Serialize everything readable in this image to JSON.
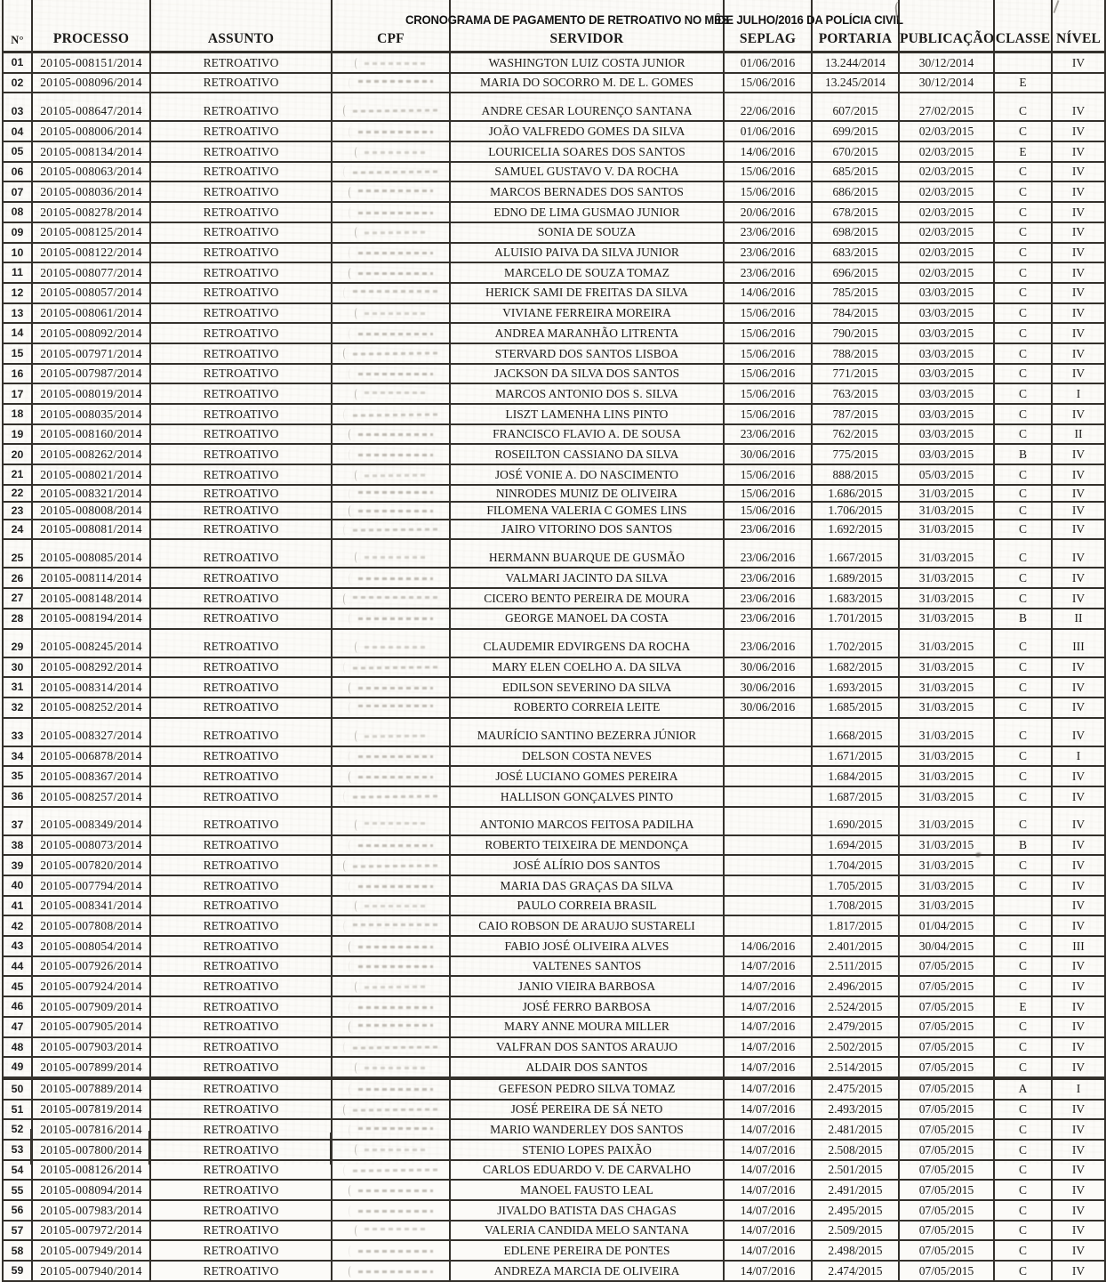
{
  "doc": {
    "title": {
      "part1": "CRONOGRAMA DE PAGAMENTO DE RETROATIVO NO MÊS",
      "part2": " DE JULHO",
      "part3": "/2016 DA POLÍCIA CIVIL"
    },
    "columns": [
      "N°",
      "PROCESSO",
      "ASSUNTO",
      "CPF",
      "SERVIDOR",
      "SEPLAG",
      "PORTARIA",
      "PUBLICAÇÃO",
      "CLASSE",
      "NÍVEL"
    ],
    "rows": [
      {
        "n": "01",
        "processo": "20105-008151/2014",
        "assunto": "RETROATIVO",
        "cpf": "",
        "servidor": "WASHINGTON LUIZ COSTA JUNIOR",
        "seplag": "01/06/2016",
        "portaria": "13.244/2014",
        "publicacao": "30/12/2014",
        "classe": "",
        "nivel": "IV"
      },
      {
        "n": "02",
        "processo": "20105-008096/2014",
        "assunto": "RETROATIVO",
        "cpf": "",
        "servidor": "MARIA DO SOCORRO M. DE L. GOMES",
        "seplag": "15/06/2016",
        "portaria": "13.245/2014",
        "publicacao": "30/12/2014",
        "classe": "E",
        "nivel": ""
      },
      {
        "n": "03",
        "processo": "20105-008647/2014",
        "assunto": "RETROATIVO",
        "cpf": "",
        "servidor": "ANDRE CESAR LOURENÇO SANTANA",
        "seplag": "22/06/2016",
        "portaria": "607/2015",
        "publicacao": "27/02/2015",
        "classe": "C",
        "nivel": "IV"
      },
      {
        "n": "04",
        "processo": "20105-008006/2014",
        "assunto": "RETROATIVO",
        "cpf": "",
        "servidor": "JOÃO VALFREDO GOMES DA SILVA",
        "seplag": "01/06/2016",
        "portaria": "699/2015",
        "publicacao": "02/03/2015",
        "classe": "C",
        "nivel": "IV"
      },
      {
        "n": "05",
        "processo": "20105-008134/2014",
        "assunto": "RETROATIVO",
        "cpf": "",
        "servidor": "LOURICELIA SOARES DOS SANTOS",
        "seplag": "14/06/2016",
        "portaria": "670/2015",
        "publicacao": "02/03/2015",
        "classe": "E",
        "nivel": "IV"
      },
      {
        "n": "06",
        "processo": "20105-008063/2014",
        "assunto": "RETROATIVO",
        "cpf": "",
        "servidor": "SAMUEL GUSTAVO V. DA ROCHA",
        "seplag": "15/06/2016",
        "portaria": "685/2015",
        "publicacao": "02/03/2015",
        "classe": "C",
        "nivel": "IV"
      },
      {
        "n": "07",
        "processo": "20105-008036/2014",
        "assunto": "RETROATIVO",
        "cpf": "",
        "servidor": "MARCOS BERNADES DOS SANTOS",
        "seplag": "15/06/2016",
        "portaria": "686/2015",
        "publicacao": "02/03/2015",
        "classe": "C",
        "nivel": "IV"
      },
      {
        "n": "08",
        "processo": "20105-008278/2014",
        "assunto": "RETROATIVO",
        "cpf": "",
        "servidor": "EDNO DE LIMA GUSMAO JUNIOR",
        "seplag": "20/06/2016",
        "portaria": "678/2015",
        "publicacao": "02/03/2015",
        "classe": "C",
        "nivel": "IV"
      },
      {
        "n": "09",
        "processo": "20105-008125/2014",
        "assunto": "RETROATIVO",
        "cpf": "",
        "servidor": "SONIA DE SOUZA",
        "seplag": "23/06/2016",
        "portaria": "698/2015",
        "publicacao": "02/03/2015",
        "classe": "C",
        "nivel": "IV"
      },
      {
        "n": "10",
        "processo": "20105-008122/2014",
        "assunto": "RETROATIVO",
        "cpf": "",
        "servidor": "ALUISIO PAIVA DA SILVA JUNIOR",
        "seplag": "23/06/2016",
        "portaria": "683/2015",
        "publicacao": "02/03/2015",
        "classe": "C",
        "nivel": "IV"
      },
      {
        "n": "11",
        "processo": "20105-008077/2014",
        "assunto": "RETROATIVO",
        "cpf": "",
        "servidor": "MARCELO DE SOUZA TOMAZ",
        "seplag": "23/06/2016",
        "portaria": "696/2015",
        "publicacao": "02/03/2015",
        "classe": "C",
        "nivel": "IV"
      },
      {
        "n": "12",
        "processo": "20105-008057/2014",
        "assunto": "RETROATIVO",
        "cpf": "",
        "servidor": "HERICK SAMI DE FREITAS DA SILVA",
        "seplag": "14/06/2016",
        "portaria": "785/2015",
        "publicacao": "03/03/2015",
        "classe": "C",
        "nivel": "IV"
      },
      {
        "n": "13",
        "processo": "20105-008061/2014",
        "assunto": "RETROATIVO",
        "cpf": "",
        "servidor": "VIVIANE FERREIRA MOREIRA",
        "seplag": "15/06/2016",
        "portaria": "784/2015",
        "publicacao": "03/03/2015",
        "classe": "C",
        "nivel": "IV"
      },
      {
        "n": "14",
        "processo": "20105-008092/2014",
        "assunto": "RETROATIVO",
        "cpf": "",
        "servidor": "ANDREA MARANHÃO LITRENTA",
        "seplag": "15/06/2016",
        "portaria": "790/2015",
        "publicacao": "03/03/2015",
        "classe": "C",
        "nivel": "IV"
      },
      {
        "n": "15",
        "processo": "20105-007971/2014",
        "assunto": "RETROATIVO",
        "cpf": "",
        "servidor": "STERVARD DOS SANTOS LISBOA",
        "seplag": "15/06/2016",
        "portaria": "788/2015",
        "publicacao": "03/03/2015",
        "classe": "C",
        "nivel": "IV"
      },
      {
        "n": "16",
        "processo": "20105-007987/2014",
        "assunto": "RETROATIVO",
        "cpf": "",
        "servidor": "JACKSON DA SILVA DOS SANTOS",
        "seplag": "15/06/2016",
        "portaria": "771/2015",
        "publicacao": "03/03/2015",
        "classe": "C",
        "nivel": "IV"
      },
      {
        "n": "17",
        "processo": "20105-008019/2014",
        "assunto": "RETROATIVO",
        "cpf": "",
        "servidor": "MARCOS ANTONIO DOS S. SILVA",
        "seplag": "15/06/2016",
        "portaria": "763/2015",
        "publicacao": "03/03/2015",
        "classe": "C",
        "nivel": "I"
      },
      {
        "n": "18",
        "processo": "20105-008035/2014",
        "assunto": "RETROATIVO",
        "cpf": "",
        "servidor": "LISZT LAMENHA LINS PINTO",
        "seplag": "15/06/2016",
        "portaria": "787/2015",
        "publicacao": "03/03/2015",
        "classe": "C",
        "nivel": "IV"
      },
      {
        "n": "19",
        "processo": "20105-008160/2014",
        "assunto": "RETROATIVO",
        "cpf": "",
        "servidor": "FRANCISCO FLAVIO A. DE SOUSA",
        "seplag": "23/06/2016",
        "portaria": "762/2015",
        "publicacao": "03/03/2015",
        "classe": "C",
        "nivel": "II"
      },
      {
        "n": "20",
        "processo": "20105-008262/2014",
        "assunto": "RETROATIVO",
        "cpf": "",
        "servidor": "ROSEILTON CASSIANO DA SILVA",
        "seplag": "30/06/2016",
        "portaria": "775/2015",
        "publicacao": "03/03/2015",
        "classe": "B",
        "nivel": "IV"
      },
      {
        "n": "21",
        "processo": "20105-008021/2014",
        "assunto": "RETROATIVO",
        "cpf": "",
        "servidor": "JOSÉ VONIE A. DO NASCIMENTO",
        "seplag": "15/06/2016",
        "portaria": "888/2015",
        "publicacao": "05/03/2015",
        "classe": "C",
        "nivel": "IV"
      },
      {
        "n": "22",
        "processo": "20105-008321/2014",
        "assunto": "RETROATIVO",
        "cpf": "",
        "servidor": "NINRODES MUNIZ DE OLIVEIRA",
        "seplag": "15/06/2016",
        "portaria": "1.686/2015",
        "publicacao": "31/03/2015",
        "classe": "C",
        "nivel": "IV"
      },
      {
        "n": "23",
        "processo": "20105-008008/2014",
        "assunto": "RETROATIVO",
        "cpf": "",
        "servidor": "FILOMENA VALERIA C GOMES LINS",
        "seplag": "15/06/2016",
        "portaria": "1.706/2015",
        "publicacao": "31/03/2015",
        "classe": "C",
        "nivel": "IV"
      },
      {
        "n": "24",
        "processo": "20105-008081/2014",
        "assunto": "RETROATIVO",
        "cpf": "",
        "servidor": "JAIRO VITORINO DOS SANTOS",
        "seplag": "23/06/2016",
        "portaria": "1.692/2015",
        "publicacao": "31/03/2015",
        "classe": "C",
        "nivel": "IV"
      },
      {
        "n": "25",
        "processo": "20105-008085/2014",
        "assunto": "RETROATIVO",
        "cpf": "",
        "servidor": "HERMANN BUARQUE DE GUSMÃO",
        "seplag": "23/06/2016",
        "portaria": "1.667/2015",
        "publicacao": "31/03/2015",
        "classe": "C",
        "nivel": "IV"
      },
      {
        "n": "26",
        "processo": "20105-008114/2014",
        "assunto": "RETROATIVO",
        "cpf": "",
        "servidor": "VALMARI JACINTO DA SILVA",
        "seplag": "23/06/2016",
        "portaria": "1.689/2015",
        "publicacao": "31/03/2015",
        "classe": "C",
        "nivel": "IV"
      },
      {
        "n": "27",
        "processo": "20105-008148/2014",
        "assunto": "RETROATIVO",
        "cpf": "",
        "servidor": "CICERO BENTO PEREIRA DE MOURA",
        "seplag": "23/06/2016",
        "portaria": "1.683/2015",
        "publicacao": "31/03/2015",
        "classe": "C",
        "nivel": "IV"
      },
      {
        "n": "28",
        "processo": "20105-008194/2014",
        "assunto": "RETROATIVO",
        "cpf": "",
        "servidor": "GEORGE MANOEL DA COSTA",
        "seplag": "23/06/2016",
        "portaria": "1.701/2015",
        "publicacao": "31/03/2015",
        "classe": "B",
        "nivel": "II"
      },
      {
        "n": "29",
        "processo": "20105-008245/2014",
        "assunto": "RETROATIVO",
        "cpf": "",
        "servidor": "CLAUDEMIR EDVIRGENS DA ROCHA",
        "seplag": "23/06/2016",
        "portaria": "1.702/2015",
        "publicacao": "31/03/2015",
        "classe": "C",
        "nivel": "III"
      },
      {
        "n": "30",
        "processo": "20105-008292/2014",
        "assunto": "RETROATIVO",
        "cpf": "",
        "servidor": "MARY ELEN COELHO A. DA SILVA",
        "seplag": "30/06/2016",
        "portaria": "1.682/2015",
        "publicacao": "31/03/2015",
        "classe": "C",
        "nivel": "IV"
      },
      {
        "n": "31",
        "processo": "20105-008314/2014",
        "assunto": "RETROATIVO",
        "cpf": "",
        "servidor": "EDILSON SEVERINO DA SILVA",
        "seplag": "30/06/2016",
        "portaria": "1.693/2015",
        "publicacao": "31/03/2015",
        "classe": "C",
        "nivel": "IV"
      },
      {
        "n": "32",
        "processo": "20105-008252/2014",
        "assunto": "RETROATIVO",
        "cpf": "",
        "servidor": "ROBERTO CORREIA LEITE",
        "seplag": "30/06/2016",
        "portaria": "1.685/2015",
        "publicacao": "31/03/2015",
        "classe": "C",
        "nivel": "IV"
      },
      {
        "n": "33",
        "processo": "20105-008327/2014",
        "assunto": "RETROATIVO",
        "cpf": "",
        "servidor": "MAURÍCIO SANTINO BEZERRA JÚNIOR",
        "seplag": "",
        "portaria": "1.668/2015",
        "publicacao": "31/03/2015",
        "classe": "C",
        "nivel": "IV"
      },
      {
        "n": "34",
        "processo": "20105-006878/2014",
        "assunto": "RETROATIVO",
        "cpf": "",
        "servidor": "DELSON COSTA NEVES",
        "seplag": "",
        "portaria": "1.671/2015",
        "publicacao": "31/03/2015",
        "classe": "C",
        "nivel": "I"
      },
      {
        "n": "35",
        "processo": "20105-008367/2014",
        "assunto": "RETROATIVO",
        "cpf": "",
        "servidor": "JOSÉ LUCIANO GOMES PEREIRA",
        "seplag": "",
        "portaria": "1.684/2015",
        "publicacao": "31/03/2015",
        "classe": "C",
        "nivel": "IV"
      },
      {
        "n": "36",
        "processo": "20105-008257/2014",
        "assunto": "RETROATIVO",
        "cpf": "",
        "servidor": "HALLISON GONÇALVES PINTO",
        "seplag": "",
        "portaria": "1.687/2015",
        "publicacao": "31/03/2015",
        "classe": "C",
        "nivel": "IV"
      },
      {
        "n": "37",
        "processo": "20105-008349/2014",
        "assunto": "RETROATIVO",
        "cpf": "",
        "servidor": "ANTONIO MARCOS FEITOSA PADILHA",
        "seplag": "",
        "portaria": "1.690/2015",
        "publicacao": "31/03/2015",
        "classe": "C",
        "nivel": "IV"
      },
      {
        "n": "38",
        "processo": "20105-008073/2014",
        "assunto": "RETROATIVO",
        "cpf": "",
        "servidor": "ROBERTO TEIXEIRA DE MENDONÇA",
        "seplag": "",
        "portaria": "1.694/2015",
        "publicacao": "31/03/2015",
        "classe": "B",
        "nivel": "IV"
      },
      {
        "n": "39",
        "processo": "20105-007820/2014",
        "assunto": "RETROATIVO",
        "cpf": "",
        "servidor": "JOSÉ ALÍRIO DOS SANTOS",
        "seplag": "",
        "portaria": "1.704/2015",
        "publicacao": "31/03/2015",
        "classe": "C",
        "nivel": "IV"
      },
      {
        "n": "40",
        "processo": "20105-007794/2014",
        "assunto": "RETROATIVO",
        "cpf": "",
        "servidor": "MARIA DAS GRAÇAS DA SILVA",
        "seplag": "",
        "portaria": "1.705/2015",
        "publicacao": "31/03/2015",
        "classe": "C",
        "nivel": "IV"
      },
      {
        "n": "41",
        "processo": "20105-008341/2014",
        "assunto": "RETROATIVO",
        "cpf": "",
        "servidor": "PAULO CORREIA BRASIL",
        "seplag": "",
        "portaria": "1.708/2015",
        "publicacao": "31/03/2015",
        "classe": "",
        "nivel": "IV"
      },
      {
        "n": "42",
        "processo": "20105-007808/2014",
        "assunto": "RETROATIVO",
        "cpf": "",
        "servidor": "CAIO ROBSON DE ARAUJO SUSTARELI",
        "seplag": "",
        "portaria": "1.817/2015",
        "publicacao": "01/04/2015",
        "classe": "C",
        "nivel": "IV"
      },
      {
        "n": "43",
        "processo": "20105-008054/2014",
        "assunto": "RETROATIVO",
        "cpf": "",
        "servidor": "FABIO JOSÉ OLIVEIRA ALVES",
        "seplag": "14/06/2016",
        "portaria": "2.401/2015",
        "publicacao": "30/04/2015",
        "classe": "C",
        "nivel": "III"
      },
      {
        "n": "44",
        "processo": "20105-007926/2014",
        "assunto": "RETROATIVO",
        "cpf": "",
        "servidor": "VALTENES SANTOS",
        "seplag": "14/07/2016",
        "portaria": "2.511/2015",
        "publicacao": "07/05/2015",
        "classe": "C",
        "nivel": "IV"
      },
      {
        "n": "45",
        "processo": "20105-007924/2014",
        "assunto": "RETROATIVO",
        "cpf": "",
        "servidor": "JANIO VIEIRA BARBOSA",
        "seplag": "14/07/2016",
        "portaria": "2.496/2015",
        "publicacao": "07/05/2015",
        "classe": "C",
        "nivel": "IV"
      },
      {
        "n": "46",
        "processo": "20105-007909/2014",
        "assunto": "RETROATIVO",
        "cpf": "",
        "servidor": "JOSÉ FERRO BARBOSA",
        "seplag": "14/07/2016",
        "portaria": "2.524/2015",
        "publicacao": "07/05/2015",
        "classe": "E",
        "nivel": "IV"
      },
      {
        "n": "47",
        "processo": "20105-007905/2014",
        "assunto": "RETROATIVO",
        "cpf": "",
        "servidor": "MARY ANNE MOURA MILLER",
        "seplag": "14/07/2016",
        "portaria": "2.479/2015",
        "publicacao": "07/05/2015",
        "classe": "C",
        "nivel": "IV"
      },
      {
        "n": "48",
        "processo": "20105-007903/2014",
        "assunto": "RETROATIVO",
        "cpf": "",
        "servidor": "VALFRAN DOS SANTOS ARAUJO",
        "seplag": "14/07/2016",
        "portaria": "2.502/2015",
        "publicacao": "07/05/2015",
        "classe": "C",
        "nivel": "IV"
      },
      {
        "n": "49",
        "processo": "20105-007899/2014",
        "assunto": "RETROATIVO",
        "cpf": "",
        "servidor": "ALDAIR DOS SANTOS",
        "seplag": "14/07/2016",
        "portaria": "2.514/2015",
        "publicacao": "07/05/2015",
        "classe": "C",
        "nivel": "IV"
      },
      {
        "n": "50",
        "processo": "20105-007889/2014",
        "assunto": "RETROATIVO",
        "cpf": "",
        "servidor": "GEFESON PEDRO SILVA TOMAZ",
        "seplag": "14/07/2016",
        "portaria": "2.475/2015",
        "publicacao": "07/05/2015",
        "classe": "A",
        "nivel": "I"
      },
      {
        "n": "51",
        "processo": "20105-007819/2014",
        "assunto": "RETROATIVO",
        "cpf": "",
        "servidor": "JOSÉ PEREIRA DE SÁ NETO",
        "seplag": "14/07/2016",
        "portaria": "2.493/2015",
        "publicacao": "07/05/2015",
        "classe": "C",
        "nivel": "IV"
      },
      {
        "n": "52",
        "processo": "20105-007816/2014",
        "assunto": "RETROATIVO",
        "cpf": "",
        "servidor": "MARIO WANDERLEY DOS SANTOS",
        "seplag": "14/07/2016",
        "portaria": "2.481/2015",
        "publicacao": "07/05/2015",
        "classe": "C",
        "nivel": "IV"
      },
      {
        "n": "53",
        "processo": "20105-007800/2014",
        "assunto": "RETROATIVO",
        "cpf": "",
        "servidor": "STENIO LOPES PAIXÃO",
        "seplag": "14/07/2016",
        "portaria": "2.508/2015",
        "publicacao": "07/05/2015",
        "classe": "C",
        "nivel": "IV"
      },
      {
        "n": "54",
        "processo": "20105-008126/2014",
        "assunto": "RETROATIVO",
        "cpf": "",
        "servidor": "CARLOS EDUARDO V. DE CARVALHO",
        "seplag": "14/07/2016",
        "portaria": "2.501/2015",
        "publicacao": "07/05/2015",
        "classe": "C",
        "nivel": "IV"
      },
      {
        "n": "55",
        "processo": "20105-008094/2014",
        "assunto": "RETROATIVO",
        "cpf": "",
        "servidor": "MANOEL FAUSTO LEAL",
        "seplag": "14/07/2016",
        "portaria": "2.491/2015",
        "publicacao": "07/05/2015",
        "classe": "C",
        "nivel": "IV"
      },
      {
        "n": "56",
        "processo": "20105-007983/2014",
        "assunto": "RETROATIVO",
        "cpf": "",
        "servidor": "JIVALDO BATISTA DAS CHAGAS",
        "seplag": "14/07/2016",
        "portaria": "2.495/2015",
        "publicacao": "07/05/2015",
        "classe": "C",
        "nivel": "IV"
      },
      {
        "n": "57",
        "processo": "20105-007972/2014",
        "assunto": "RETROATIVO",
        "cpf": "",
        "servidor": "VALERIA CANDIDA MELO SANTANA",
        "seplag": "14/07/2016",
        "portaria": "2.509/2015",
        "publicacao": "07/05/2015",
        "classe": "C",
        "nivel": "IV"
      },
      {
        "n": "58",
        "processo": "20105-007949/2014",
        "assunto": "RETROATIVO",
        "cpf": "",
        "servidor": "EDLENE PEREIRA DE PONTES",
        "seplag": "14/07/2016",
        "portaria": "2.498/2015",
        "publicacao": "07/05/2015",
        "classe": "C",
        "nivel": "IV"
      },
      {
        "n": "59",
        "processo": "20105-007940/2014",
        "assunto": "RETROATIVO",
        "cpf": "",
        "servidor": "ANDREZA MARCIA DE OLIVEIRA",
        "seplag": "14/07/2016",
        "portaria": "2.474/2015",
        "publicacao": "07/05/2015",
        "classe": "C",
        "nivel": "IV"
      }
    ]
  }
}
